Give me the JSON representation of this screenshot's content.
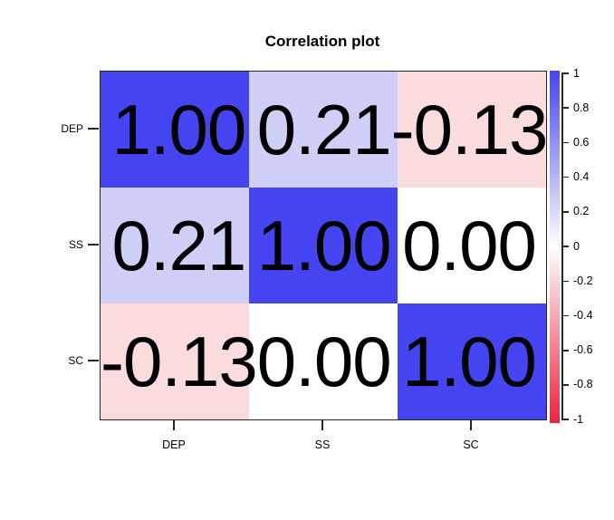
{
  "chart_data": {
    "type": "heatmap",
    "title": "Correlation plot",
    "x_categories": [
      "DEP",
      "SS",
      "SC"
    ],
    "y_categories": [
      "DEP",
      "SS",
      "SC"
    ],
    "matrix": [
      [
        1.0,
        0.21,
        -0.13
      ],
      [
        0.21,
        1.0,
        0.0
      ],
      [
        -0.13,
        0.0,
        1.0
      ]
    ],
    "cell_labels": [
      [
        "1.00",
        "0.21",
        "-0.13"
      ],
      [
        "0.21",
        "1.00",
        "0.00"
      ],
      [
        "-0.13",
        "0.00",
        "1.00"
      ]
    ],
    "cell_colors": [
      [
        "#4444f0",
        "#cecef7",
        "#fadcdc"
      ],
      [
        "#cecef7",
        "#4444f0",
        "#ffffff"
      ],
      [
        "#fadcdc",
        "#ffffff",
        "#4444f0"
      ]
    ],
    "value_range": [
      -1,
      1
    ],
    "grid": false,
    "legend": {
      "position": "right",
      "tick_labels": [
        "1",
        "0.8",
        "0.6",
        "0.4",
        "0.2",
        "0",
        "-0.2",
        "-0.4",
        "-0.6",
        "-0.8",
        "-1"
      ],
      "gradient_top_color": "#4444f0",
      "gradient_mid_color": "#ffffff",
      "gradient_bottom_color": "#f1203f"
    },
    "text_color": "#000000"
  }
}
